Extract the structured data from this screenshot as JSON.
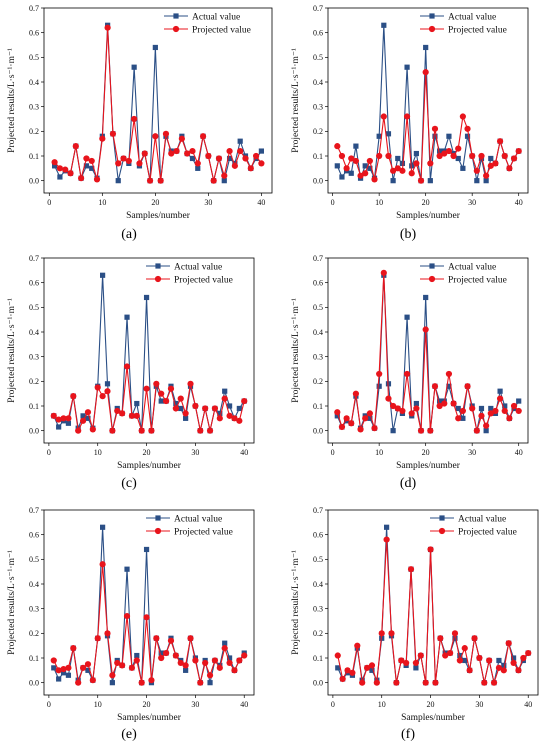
{
  "chart_data": [
    {
      "type": "line",
      "caption": "(a)",
      "xlabel": "Samples/number",
      "ylabel": "Projected results/L·s⁻¹·m⁻¹",
      "xlim": [
        -1,
        42
      ],
      "ylim": [
        -0.05,
        0.7
      ],
      "xticks": [
        0,
        10,
        20,
        30,
        40
      ],
      "yticks": [
        0.0,
        0.1,
        0.2,
        0.3,
        0.4,
        0.5,
        0.6,
        0.7
      ],
      "grid": false,
      "legend_position": "top-right",
      "colors": {
        "Actual value": "#2b4f86",
        "Projected value": "#e8141c"
      },
      "x": [
        1,
        2,
        3,
        4,
        5,
        6,
        7,
        8,
        9,
        10,
        11,
        12,
        13,
        14,
        15,
        16,
        17,
        18,
        19,
        20,
        21,
        22,
        23,
        24,
        25,
        26,
        27,
        28,
        29,
        30,
        31,
        32,
        33,
        34,
        35,
        36,
        37,
        38,
        39,
        40
      ],
      "series": [
        {
          "name": "Actual value",
          "marker": "square",
          "values": [
            0.06,
            0.015,
            0.04,
            0.03,
            0.14,
            0.01,
            0.06,
            0.05,
            0.01,
            0.18,
            0.63,
            0.19,
            0.0,
            0.09,
            0.07,
            0.46,
            0.06,
            0.11,
            0.0,
            0.54,
            0.0,
            0.18,
            0.12,
            0.12,
            0.18,
            0.11,
            0.09,
            0.05,
            0.18,
            0.1,
            0.0,
            0.09,
            0.0,
            0.09,
            0.07,
            0.16,
            0.1,
            0.05,
            0.09,
            0.12
          ]
        },
        {
          "name": "Projected value",
          "marker": "circle",
          "values": [
            0.075,
            0.05,
            0.045,
            0.03,
            0.14,
            0.01,
            0.09,
            0.08,
            0.005,
            0.17,
            0.62,
            0.19,
            0.07,
            0.09,
            0.08,
            0.25,
            0.07,
            0.11,
            0.0,
            0.18,
            0.0,
            0.19,
            0.11,
            0.12,
            0.17,
            0.11,
            0.12,
            0.07,
            0.18,
            0.1,
            0.0,
            0.09,
            0.02,
            0.12,
            0.06,
            0.12,
            0.09,
            0.05,
            0.1,
            0.07
          ]
        }
      ]
    },
    {
      "type": "line",
      "caption": "(b)",
      "xlabel": "Samples/number",
      "ylabel": "Projected results/L·s⁻¹·m⁻¹",
      "xlim": [
        -1,
        42
      ],
      "ylim": [
        -0.05,
        0.7
      ],
      "xticks": [
        0,
        10,
        20,
        30,
        40
      ],
      "yticks": [
        0.0,
        0.1,
        0.2,
        0.3,
        0.4,
        0.5,
        0.6,
        0.7
      ],
      "grid": false,
      "legend_position": "top-right",
      "colors": {
        "Actual value": "#2b4f86",
        "Projected value": "#e8141c"
      },
      "x": [
        1,
        2,
        3,
        4,
        5,
        6,
        7,
        8,
        9,
        10,
        11,
        12,
        13,
        14,
        15,
        16,
        17,
        18,
        19,
        20,
        21,
        22,
        23,
        24,
        25,
        26,
        27,
        28,
        29,
        30,
        31,
        32,
        33,
        34,
        35,
        36,
        37,
        38,
        39,
        40
      ],
      "series": [
        {
          "name": "Actual value",
          "marker": "square",
          "values": [
            0.06,
            0.015,
            0.04,
            0.03,
            0.14,
            0.01,
            0.06,
            0.05,
            0.01,
            0.18,
            0.63,
            0.19,
            0.0,
            0.09,
            0.07,
            0.46,
            0.06,
            0.11,
            0.0,
            0.54,
            0.0,
            0.18,
            0.12,
            0.12,
            0.18,
            0.11,
            0.09,
            0.05,
            0.18,
            0.1,
            0.0,
            0.09,
            0.0,
            0.09,
            0.07,
            0.16,
            0.1,
            0.05,
            0.09,
            0.12
          ]
        },
        {
          "name": "Projected value",
          "marker": "circle",
          "values": [
            0.14,
            0.1,
            0.05,
            0.09,
            0.08,
            0.02,
            0.03,
            0.08,
            0.005,
            0.1,
            0.26,
            0.1,
            0.04,
            0.05,
            0.04,
            0.26,
            0.03,
            0.07,
            0.0,
            0.44,
            0.07,
            0.21,
            0.1,
            0.11,
            0.12,
            0.1,
            0.13,
            0.26,
            0.21,
            0.1,
            0.04,
            0.1,
            0.02,
            0.06,
            0.07,
            0.16,
            0.1,
            0.05,
            0.09,
            0.12
          ]
        }
      ]
    },
    {
      "type": "line",
      "caption": "(c)",
      "xlabel": "Samples/number",
      "ylabel": "Projected results/L·s⁻¹·m⁻¹",
      "xlim": [
        -1,
        42
      ],
      "ylim": [
        -0.05,
        0.7
      ],
      "xticks": [
        0,
        10,
        20,
        30,
        40
      ],
      "yticks": [
        0.0,
        0.1,
        0.2,
        0.3,
        0.4,
        0.5,
        0.6,
        0.7
      ],
      "grid": false,
      "legend_position": "top-right",
      "colors": {
        "Actual value": "#2b4f86",
        "Projected value": "#e8141c"
      },
      "x": [
        1,
        2,
        3,
        4,
        5,
        6,
        7,
        8,
        9,
        10,
        11,
        12,
        13,
        14,
        15,
        16,
        17,
        18,
        19,
        20,
        21,
        22,
        23,
        24,
        25,
        26,
        27,
        28,
        29,
        30,
        31,
        32,
        33,
        34,
        35,
        36,
        37,
        38,
        39,
        40
      ],
      "series": [
        {
          "name": "Actual value",
          "marker": "square",
          "values": [
            0.06,
            0.015,
            0.04,
            0.03,
            0.14,
            0.01,
            0.06,
            0.05,
            0.01,
            0.18,
            0.63,
            0.19,
            0.0,
            0.09,
            0.07,
            0.46,
            0.06,
            0.11,
            0.0,
            0.54,
            0.0,
            0.18,
            0.12,
            0.12,
            0.18,
            0.11,
            0.09,
            0.05,
            0.18,
            0.1,
            0.0,
            0.09,
            0.0,
            0.09,
            0.07,
            0.16,
            0.1,
            0.05,
            0.09,
            0.12
          ]
        },
        {
          "name": "Projected value",
          "marker": "circle",
          "values": [
            0.06,
            0.045,
            0.05,
            0.05,
            0.14,
            0.0,
            0.04,
            0.075,
            0.005,
            0.175,
            0.14,
            0.16,
            0.0,
            0.08,
            0.07,
            0.26,
            0.06,
            0.06,
            0.0,
            0.17,
            0.0,
            0.19,
            0.15,
            0.12,
            0.17,
            0.09,
            0.13,
            0.07,
            0.19,
            0.1,
            0.0,
            0.09,
            0.0,
            0.09,
            0.05,
            0.13,
            0.06,
            0.05,
            0.04,
            0.12
          ]
        }
      ]
    },
    {
      "type": "line",
      "caption": "(d)",
      "xlabel": "Samples/number",
      "ylabel": "Projected results/L·s⁻¹·m⁻¹",
      "xlim": [
        -1,
        42
      ],
      "ylim": [
        -0.05,
        0.7
      ],
      "xticks": [
        0,
        10,
        20,
        30,
        40
      ],
      "yticks": [
        0.0,
        0.1,
        0.2,
        0.3,
        0.4,
        0.5,
        0.6,
        0.7
      ],
      "grid": false,
      "legend_position": "top-right",
      "colors": {
        "Actual value": "#2b4f86",
        "Projected value": "#e8141c"
      },
      "x": [
        1,
        2,
        3,
        4,
        5,
        6,
        7,
        8,
        9,
        10,
        11,
        12,
        13,
        14,
        15,
        16,
        17,
        18,
        19,
        20,
        21,
        22,
        23,
        24,
        25,
        26,
        27,
        28,
        29,
        30,
        31,
        32,
        33,
        34,
        35,
        36,
        37,
        38,
        39,
        40
      ],
      "series": [
        {
          "name": "Actual value",
          "marker": "square",
          "values": [
            0.06,
            0.015,
            0.04,
            0.03,
            0.14,
            0.01,
            0.06,
            0.05,
            0.01,
            0.18,
            0.63,
            0.19,
            0.0,
            0.09,
            0.07,
            0.46,
            0.06,
            0.11,
            0.0,
            0.54,
            0.0,
            0.18,
            0.12,
            0.12,
            0.18,
            0.11,
            0.09,
            0.05,
            0.18,
            0.1,
            0.0,
            0.09,
            0.0,
            0.09,
            0.07,
            0.16,
            0.1,
            0.05,
            0.09,
            0.12
          ]
        },
        {
          "name": "Projected value",
          "marker": "circle",
          "values": [
            0.075,
            0.015,
            0.05,
            0.03,
            0.15,
            0.005,
            0.05,
            0.07,
            0.01,
            0.23,
            0.64,
            0.13,
            0.1,
            0.09,
            0.08,
            0.23,
            0.07,
            0.09,
            0.0,
            0.41,
            0.0,
            0.18,
            0.1,
            0.11,
            0.23,
            0.11,
            0.05,
            0.08,
            0.18,
            0.09,
            0.0,
            0.06,
            0.02,
            0.07,
            0.08,
            0.13,
            0.08,
            0.05,
            0.1,
            0.08
          ]
        }
      ]
    },
    {
      "type": "line",
      "caption": "(e)",
      "xlabel": "Samples/number",
      "ylabel": "Projected results/L·s⁻¹·m⁻¹",
      "xlim": [
        -1,
        42
      ],
      "ylim": [
        -0.05,
        0.7
      ],
      "xticks": [
        0,
        10,
        20,
        30,
        40
      ],
      "yticks": [
        0.0,
        0.1,
        0.2,
        0.3,
        0.4,
        0.5,
        0.6,
        0.7
      ],
      "grid": false,
      "legend_position": "top-right",
      "colors": {
        "Actual value": "#2b4f86",
        "Projected value": "#e8141c"
      },
      "x": [
        1,
        2,
        3,
        4,
        5,
        6,
        7,
        8,
        9,
        10,
        11,
        12,
        13,
        14,
        15,
        16,
        17,
        18,
        19,
        20,
        21,
        22,
        23,
        24,
        25,
        26,
        27,
        28,
        29,
        30,
        31,
        32,
        33,
        34,
        35,
        36,
        37,
        38,
        39,
        40
      ],
      "series": [
        {
          "name": "Actual value",
          "marker": "square",
          "values": [
            0.06,
            0.015,
            0.04,
            0.03,
            0.14,
            0.01,
            0.06,
            0.05,
            0.01,
            0.18,
            0.63,
            0.19,
            0.0,
            0.09,
            0.07,
            0.46,
            0.06,
            0.11,
            0.0,
            0.54,
            0.0,
            0.18,
            0.12,
            0.12,
            0.18,
            0.11,
            0.09,
            0.05,
            0.18,
            0.1,
            0.0,
            0.09,
            0.0,
            0.09,
            0.07,
            0.16,
            0.1,
            0.05,
            0.09,
            0.12
          ]
        },
        {
          "name": "Projected value",
          "marker": "circle",
          "values": [
            0.09,
            0.05,
            0.055,
            0.06,
            0.14,
            0.0,
            0.06,
            0.075,
            0.01,
            0.18,
            0.48,
            0.2,
            0.03,
            0.08,
            0.07,
            0.27,
            0.06,
            0.09,
            0.0,
            0.265,
            0.01,
            0.18,
            0.1,
            0.12,
            0.17,
            0.11,
            0.08,
            0.07,
            0.18,
            0.09,
            0.0,
            0.08,
            0.03,
            0.09,
            0.06,
            0.14,
            0.08,
            0.05,
            0.09,
            0.11
          ]
        }
      ]
    },
    {
      "type": "line",
      "caption": "(f)",
      "xlabel": "Samples/number",
      "ylabel": "Projected results/L·s⁻¹·m⁻¹",
      "xlim": [
        -1,
        42
      ],
      "ylim": [
        -0.05,
        0.7
      ],
      "xticks": [
        0,
        10,
        20,
        30,
        40
      ],
      "yticks": [
        0.0,
        0.1,
        0.2,
        0.3,
        0.4,
        0.5,
        0.6,
        0.7
      ],
      "grid": false,
      "legend_position": "top-right",
      "colors": {
        "Actual value": "#2b4f86",
        "Projected value": "#e8141c"
      },
      "x": [
        1,
        2,
        3,
        4,
        5,
        6,
        7,
        8,
        9,
        10,
        11,
        12,
        13,
        14,
        15,
        16,
        17,
        18,
        19,
        20,
        21,
        22,
        23,
        24,
        25,
        26,
        27,
        28,
        29,
        30,
        31,
        32,
        33,
        34,
        35,
        36,
        37,
        38,
        39,
        40
      ],
      "series": [
        {
          "name": "Actual value",
          "marker": "square",
          "values": [
            0.06,
            0.015,
            0.04,
            0.03,
            0.14,
            0.01,
            0.06,
            0.05,
            0.01,
            0.18,
            0.63,
            0.19,
            0.0,
            0.09,
            0.07,
            0.46,
            0.06,
            0.11,
            0.0,
            0.54,
            0.0,
            0.18,
            0.12,
            0.12,
            0.18,
            0.11,
            0.09,
            0.05,
            0.18,
            0.1,
            0.0,
            0.09,
            0.0,
            0.09,
            0.07,
            0.16,
            0.1,
            0.05,
            0.09,
            0.12
          ]
        },
        {
          "name": "Projected value",
          "marker": "circle",
          "values": [
            0.11,
            0.015,
            0.05,
            0.04,
            0.15,
            0.0,
            0.06,
            0.07,
            0.0,
            0.2,
            0.58,
            0.2,
            0.0,
            0.09,
            0.08,
            0.46,
            0.08,
            0.11,
            0.0,
            0.54,
            0.0,
            0.18,
            0.11,
            0.12,
            0.2,
            0.09,
            0.14,
            0.05,
            0.18,
            0.1,
            0.0,
            0.09,
            0.0,
            0.06,
            0.05,
            0.16,
            0.08,
            0.05,
            0.1,
            0.12
          ]
        }
      ]
    }
  ]
}
